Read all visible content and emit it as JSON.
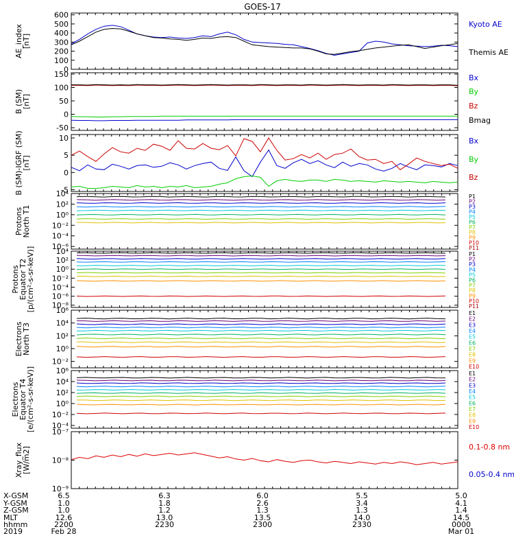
{
  "title": "GOES-17",
  "chart_data": [
    {
      "type": "line",
      "ylabel": "AE_index\n[nT]",
      "yticks": [
        "600",
        "500",
        "400",
        "300",
        "200",
        "100",
        "0"
      ],
      "ylim": [
        0,
        620
      ],
      "series": [
        {
          "name": "Kyoto AE",
          "color": "#0000cc",
          "values": [
            280,
            330,
            390,
            440,
            475,
            485,
            470,
            430,
            390,
            370,
            355,
            350,
            355,
            345,
            340,
            350,
            370,
            360,
            390,
            410,
            380,
            330,
            300,
            295,
            290,
            285,
            275,
            270,
            250,
            230,
            205,
            175,
            155,
            170,
            185,
            200,
            290,
            310,
            300,
            280,
            270,
            260,
            255,
            250,
            255,
            265,
            260,
            250
          ]
        },
        {
          "name": "Themis AE",
          "color": "#000000",
          "values": [
            270,
            310,
            360,
            410,
            440,
            450,
            445,
            420,
            390,
            370,
            350,
            345,
            335,
            330,
            320,
            330,
            345,
            340,
            355,
            360,
            350,
            310,
            270,
            260,
            250,
            245,
            240,
            235,
            235,
            225,
            200,
            170,
            165,
            180,
            195,
            205,
            220,
            235,
            245,
            255,
            265,
            270,
            250,
            230,
            245,
            260,
            270,
            285
          ]
        }
      ]
    },
    {
      "type": "line",
      "ylabel": "B (SM)\n[nT]",
      "yticks": [
        "150",
        "100",
        "50",
        "0",
        "-50"
      ],
      "ylim": [
        -60,
        155
      ],
      "series": [
        {
          "name": "Bx",
          "color": "#0000cc",
          "values": [
            -22,
            -23,
            -23,
            -24,
            -24,
            -23,
            -23,
            -23,
            -22,
            -22,
            -22,
            -22,
            -22,
            -22,
            -21,
            -21,
            -21,
            -21,
            -21,
            -21,
            -20,
            -20,
            -20,
            -20,
            -20,
            -20,
            -20,
            -20,
            -20,
            -20,
            -20,
            -20,
            -20,
            -20,
            -20,
            -20,
            -20,
            -20,
            -20,
            -20,
            -20,
            -20,
            -20,
            -20,
            -20,
            -20,
            -20,
            -20
          ]
        },
        {
          "name": "By",
          "color": "#00cc00",
          "values": [
            -8,
            -9,
            -9,
            -10,
            -10,
            -9,
            -9,
            -8,
            -8,
            -8,
            -8,
            -7,
            -7,
            -7,
            -7,
            -7,
            -7,
            -7,
            -7,
            -7,
            -7,
            -7,
            -7,
            -7,
            -7,
            -7,
            -7,
            -7,
            -7,
            -7,
            -7,
            -7,
            -7,
            -7,
            -7,
            -7,
            -7,
            -7,
            -7,
            -7,
            -7,
            -7,
            -7,
            -7,
            -7,
            -7,
            -7,
            -7
          ]
        },
        {
          "name": "Bz",
          "color": "#cc0000",
          "values": [
            108,
            108,
            107,
            109,
            108,
            107,
            108,
            107,
            109,
            108,
            108,
            107,
            108,
            109,
            108,
            107,
            108,
            109,
            108,
            107,
            108,
            108,
            107,
            109,
            108,
            107,
            108,
            108,
            107,
            109,
            108,
            107,
            108,
            109,
            108,
            107,
            108,
            108,
            107,
            109,
            108,
            107,
            108,
            108,
            107,
            108,
            108,
            106
          ]
        },
        {
          "name": "Bmag",
          "color": "#000000",
          "values": [
            110,
            110,
            109,
            111,
            110,
            109,
            110,
            109,
            111,
            110,
            110,
            109,
            110,
            111,
            110,
            109,
            110,
            111,
            110,
            109,
            110,
            110,
            109,
            111,
            110,
            109,
            110,
            110,
            109,
            111,
            110,
            109,
            110,
            111,
            110,
            109,
            110,
            110,
            109,
            111,
            110,
            109,
            110,
            110,
            109,
            110,
            110,
            108
          ]
        }
      ]
    },
    {
      "type": "line",
      "ylabel": "B (SM)-IGRF (SM)\n[nT]",
      "yticks": [
        "10",
        "5",
        "0",
        "-5"
      ],
      "ylim": [
        -5.5,
        11
      ],
      "series": [
        {
          "name": "Bx",
          "color": "#0000cc",
          "values": [
            1.5,
            0.5,
            2.2,
            1.0,
            0.8,
            2.4,
            1.8,
            1.0,
            2.0,
            2.2,
            1.5,
            1.8,
            2.8,
            2.2,
            1.0,
            2.0,
            2.6,
            3.0,
            1.2,
            0.6,
            4.5,
            0.5,
            -1.2,
            3.0,
            6.5,
            2.0,
            1.2,
            2.8,
            3.8,
            2.6,
            3.4,
            2.2,
            1.4,
            3.0,
            1.8,
            2.6,
            2.2,
            1.0,
            0.4,
            1.2,
            2.6,
            1.6,
            0.8,
            2.2,
            2.0,
            1.6,
            2.6,
            2.0
          ]
        },
        {
          "name": "By",
          "color": "#00cc00",
          "values": [
            -4.2,
            -4.0,
            -4.6,
            -4.6,
            -4.4,
            -4.0,
            -4.2,
            -4.4,
            -3.8,
            -4.2,
            -4.0,
            -4.4,
            -4.0,
            -4.2,
            -3.8,
            -4.4,
            -4.2,
            -4.0,
            -3.4,
            -3.0,
            -1.8,
            -1.2,
            -1.0,
            -1.4,
            -4.0,
            -2.4,
            -2.0,
            -2.4,
            -2.6,
            -2.2,
            -2.2,
            -2.6,
            -2.0,
            -2.2,
            -2.6,
            -2.4,
            -2.6,
            -2.8,
            -2.4,
            -2.6,
            -2.8,
            -2.6,
            -2.8,
            -3.0,
            -2.6,
            -2.8,
            -3.0,
            -2.8
          ]
        },
        {
          "name": "Bz",
          "color": "#cc0000",
          "values": [
            5.0,
            6.2,
            4.6,
            3.2,
            5.4,
            7.2,
            6.0,
            5.6,
            7.0,
            6.4,
            8.2,
            7.6,
            6.4,
            9.2,
            7.0,
            6.8,
            8.4,
            7.0,
            6.6,
            7.8,
            4.8,
            9.8,
            9.0,
            6.0,
            10.0,
            6.4,
            3.6,
            4.0,
            5.2,
            4.2,
            5.6,
            3.8,
            5.2,
            5.6,
            6.8,
            4.6,
            3.6,
            3.8,
            2.6,
            3.2,
            0.8,
            2.4,
            4.2,
            3.2,
            2.6,
            2.0,
            2.4,
            1.2
          ]
        }
      ]
    },
    {
      "type": "line",
      "ylabel": "Protons\nNorth T1",
      "log": true,
      "yticks": [
        "10⁴",
        "10²",
        "10⁰",
        "10⁻²",
        "10⁻⁴",
        "10⁻⁶"
      ],
      "ylim": [
        4,
        -6.5
      ],
      "series": [
        {
          "name": "P1",
          "color": "#000000",
          "level": 3.4
        },
        {
          "name": "P2",
          "color": "#6a007a",
          "level": 2.8
        },
        {
          "name": "P3",
          "color": "#0000cc",
          "level": 2.2
        },
        {
          "name": "P4",
          "color": "#0080ff",
          "level": 1.5
        },
        {
          "name": "P5",
          "color": "#00c8d8",
          "level": 0.8
        },
        {
          "name": "P6",
          "color": "#00b060",
          "level": 0.0
        },
        {
          "name": "P7",
          "color": "#80d000",
          "level": -0.8
        },
        {
          "name": "P8",
          "color": "#e0c000",
          "level": -1.5
        },
        {
          "name": "P9",
          "color": "#ff9000",
          "level": null
        },
        {
          "name": "P10",
          "color": "#d00000",
          "level": null
        },
        {
          "name": "P11",
          "color": "#aa0000",
          "level": null
        }
      ]
    },
    {
      "type": "line",
      "ylabel": "Protons\nEquator T2\n[p/(cm²-s-sr-keV)]",
      "log": true,
      "yticks": [
        "10⁴",
        "10²",
        "10⁰",
        "10⁻²",
        "10⁻⁴",
        "10⁻⁶",
        "10⁻⁸"
      ],
      "ylim": [
        4,
        -8.5
      ],
      "series": [
        {
          "name": "P1",
          "color": "#000000",
          "level": 3.6
        },
        {
          "name": "P2",
          "color": "#6a007a",
          "level": 3.0
        },
        {
          "name": "P3",
          "color": "#0000cc",
          "level": 2.3
        },
        {
          "name": "P4",
          "color": "#0080ff",
          "level": 1.6
        },
        {
          "name": "P5",
          "color": "#00c8d8",
          "level": 0.8
        },
        {
          "name": "P6",
          "color": "#00b060",
          "level": 0.0
        },
        {
          "name": "P7",
          "color": "#80d000",
          "level": -0.8
        },
        {
          "name": "P8",
          "color": "#e0c000",
          "level": -1.6
        },
        {
          "name": "P9",
          "color": "#ff9000",
          "level": -2.6
        },
        {
          "name": "P10",
          "color": "#d00000",
          "level": -6.0
        },
        {
          "name": "P11",
          "color": "#aa0000",
          "level": null
        }
      ]
    },
    {
      "type": "line",
      "ylabel": "Electrons\nNorth T3",
      "log": true,
      "yticks": [
        "10⁶",
        "10⁴",
        "10²",
        "10⁰",
        "10⁻²"
      ],
      "ylim": [
        6,
        -3
      ],
      "series": [
        {
          "name": "E1",
          "color": "#000000",
          "level": 4.7
        },
        {
          "name": "E2",
          "color": "#6a007a",
          "level": 4.3
        },
        {
          "name": "E3",
          "color": "#0000cc",
          "level": 3.8
        },
        {
          "name": "E4",
          "color": "#0080ff",
          "level": 3.3
        },
        {
          "name": "E5",
          "color": "#00c8d8",
          "level": 2.8
        },
        {
          "name": "E6",
          "color": "#00b060",
          "level": 2.2
        },
        {
          "name": "E7",
          "color": "#80d000",
          "level": 1.6
        },
        {
          "name": "E8",
          "color": "#e0c000",
          "level": 1.0
        },
        {
          "name": "E9",
          "color": "#ff9000",
          "level": 0.3
        },
        {
          "name": "E10",
          "color": "#d00000",
          "level": -1.3
        }
      ]
    },
    {
      "type": "line",
      "ylabel": "Electrons\nEquator T4\n[e/(cm²-s-sr-keV)]",
      "log": true,
      "yticks": [
        "10⁶",
        "10⁴",
        "10²",
        "10⁰",
        "10⁻²",
        "10⁻⁴"
      ],
      "ylim": [
        6,
        -4.5
      ],
      "series": [
        {
          "name": "E1",
          "color": "#000000",
          "level": 4.7
        },
        {
          "name": "E2",
          "color": "#6a007a",
          "level": 4.2
        },
        {
          "name": "E3",
          "color": "#0000cc",
          "level": 3.7
        },
        {
          "name": "E4",
          "color": "#0080ff",
          "level": 3.1
        },
        {
          "name": "E5",
          "color": "#00c8d8",
          "level": 2.5
        },
        {
          "name": "E6",
          "color": "#00b060",
          "level": 1.9
        },
        {
          "name": "E7",
          "color": "#80d000",
          "level": 1.3
        },
        {
          "name": "E8",
          "color": "#e0c000",
          "level": 0.6
        },
        {
          "name": "E9",
          "color": "#ff9000",
          "level": -0.2
        },
        {
          "name": "E10",
          "color": "#d00000",
          "level": -1.8
        }
      ]
    },
    {
      "type": "line",
      "ylabel": "Xray_flux\n[W/m2]",
      "log": true,
      "yticks": [
        "10⁻⁷",
        "10⁻⁸",
        "10⁻⁹"
      ],
      "ylim": [
        -7,
        -9
      ],
      "series": [
        {
          "name": "0.1-0.8 nm",
          "color": "#dd0000",
          "values": [
            -7.98,
            -7.9,
            -7.95,
            -7.85,
            -7.9,
            -7.82,
            -7.88,
            -7.8,
            -7.86,
            -7.78,
            -7.84,
            -7.8,
            -7.76,
            -7.82,
            -7.78,
            -7.74,
            -7.8,
            -7.86,
            -7.92,
            -7.88,
            -7.96,
            -8.0,
            -7.94,
            -8.02,
            -8.06,
            -7.98,
            -8.04,
            -8.08,
            -8.02,
            -8.0,
            -8.06,
            -8.1,
            -8.04,
            -8.08,
            -8.12,
            -8.06,
            -8.1,
            -8.14,
            -8.08,
            -8.12,
            -8.06,
            -8.1,
            -8.16,
            -8.12,
            -8.08,
            -8.14,
            -8.1,
            -8.06
          ]
        },
        {
          "name": "0.05-0.4 nm",
          "color": "#0000cc",
          "values": []
        }
      ]
    }
  ],
  "ephemeris": {
    "labels": [
      "X-GSM",
      "Y-GSM",
      "Z-GSM",
      "MLT",
      "hhmm",
      "2019"
    ],
    "columns": [
      {
        "values": [
          "6.5",
          "1.0",
          "1.0",
          "12.6",
          "2200",
          "Feb 28"
        ]
      },
      {
        "values": [
          "6.3",
          "1.8",
          "1.2",
          "13.0",
          "2230",
          ""
        ]
      },
      {
        "values": [
          "6.0",
          "2.6",
          "1.3",
          "13.5",
          "2300",
          ""
        ]
      },
      {
        "values": [
          "5.5",
          "3.4",
          "1.3",
          "14.0",
          "2330",
          ""
        ]
      },
      {
        "values": [
          "5.0",
          "4.1",
          "1.4",
          "14.5",
          "0000",
          "Mar 01"
        ]
      }
    ]
  }
}
